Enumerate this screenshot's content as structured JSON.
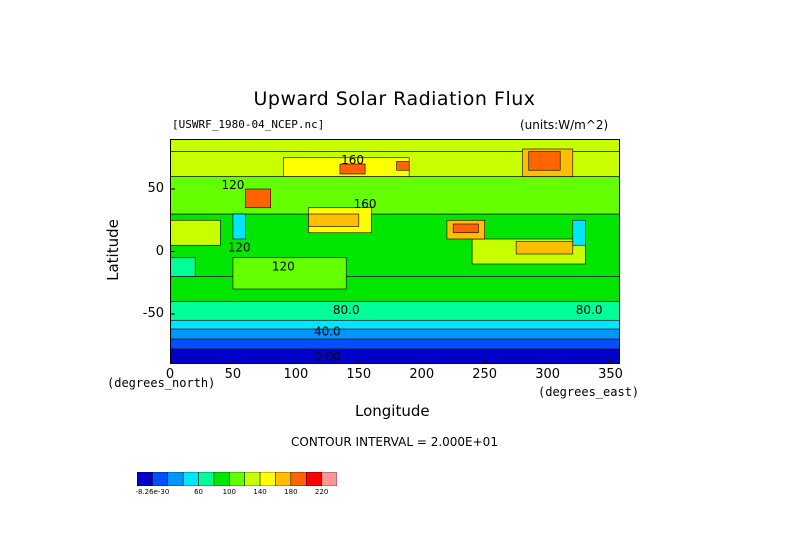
{
  "chart_data": {
    "type": "heatmap",
    "title": "Upward Solar Radiation Flux",
    "subtitle_left": "[USWRF_1980-04_NCEP.nc]",
    "subtitle_right": "(units:W/m^2)",
    "xlabel": "Longitude",
    "ylabel": "Latitude",
    "x_unit_label": "(degrees_east)",
    "y_unit_label": "(degrees_north)",
    "xlim": [
      0,
      357.5
    ],
    "ylim": [
      -90,
      90
    ],
    "x_ticks": [
      0,
      50,
      100,
      150,
      200,
      250,
      300,
      350
    ],
    "y_ticks": [
      -50,
      0,
      50
    ],
    "contour_interval_text": "CONTOUR INTERVAL = 2.000E+01",
    "contour_labels": [
      {
        "text": "160",
        "lon": 145,
        "lat": 70
      },
      {
        "text": "120",
        "lon": 50,
        "lat": 50
      },
      {
        "text": "160",
        "lon": 155,
        "lat": 35
      },
      {
        "text": "120",
        "lon": 55,
        "lat": 0
      },
      {
        "text": "120",
        "lon": 90,
        "lat": -15
      },
      {
        "text": "80.0",
        "lon": 140,
        "lat": -50
      },
      {
        "text": "80.0",
        "lon": 333,
        "lat": -50
      },
      {
        "text": "40.0",
        "lon": 125,
        "lat": -67
      },
      {
        "text": "0.00",
        "lon": 125,
        "lat": -87
      }
    ],
    "colorbar": {
      "colors": [
        "#0000c8",
        "#0050ff",
        "#0096ff",
        "#00e6ff",
        "#00ff96",
        "#00e600",
        "#64ff00",
        "#c8ff00",
        "#ffff00",
        "#ffbe00",
        "#ff6400",
        "#ff0000",
        "#ff9696"
      ],
      "tick_labels": [
        "-8.26e-30",
        "60",
        "100",
        "140",
        "180",
        "220"
      ]
    },
    "regions": [
      {
        "lat": [
          -90,
          -78
        ],
        "lon": [
          0,
          360
        ],
        "value": 10
      },
      {
        "lat": [
          -78,
          -70
        ],
        "lon": [
          0,
          360
        ],
        "value": 30
      },
      {
        "lat": [
          -70,
          -62
        ],
        "lon": [
          0,
          360
        ],
        "value": 50
      },
      {
        "lat": [
          -62,
          -55
        ],
        "lon": [
          0,
          360
        ],
        "value": 70
      },
      {
        "lat": [
          -55,
          -40
        ],
        "lon": [
          0,
          360
        ],
        "value": 90
      },
      {
        "lat": [
          -40,
          -20
        ],
        "lon": [
          0,
          360
        ],
        "value": 110
      },
      {
        "lat": [
          -20,
          30
        ],
        "lon": [
          0,
          360
        ],
        "value": 110
      },
      {
        "lat": [
          30,
          60
        ],
        "lon": [
          0,
          360
        ],
        "value": 120
      },
      {
        "lat": [
          60,
          80
        ],
        "lon": [
          0,
          360
        ],
        "value": 150
      },
      {
        "lat": [
          80,
          90
        ],
        "lon": [
          0,
          360
        ],
        "value": 150
      },
      {
        "lat": [
          5,
          25
        ],
        "lon": [
          0,
          40
        ],
        "value": 150
      },
      {
        "lat": [
          -10,
          10
        ],
        "lon": [
          240,
          330
        ],
        "value": 150
      },
      {
        "lat": [
          -30,
          -5
        ],
        "lon": [
          50,
          140
        ],
        "value": 130
      },
      {
        "lat": [
          15,
          35
        ],
        "lon": [
          110,
          160
        ],
        "value": 170
      },
      {
        "lat": [
          20,
          30
        ],
        "lon": [
          110,
          150
        ],
        "value": 190
      },
      {
        "lat": [
          10,
          25
        ],
        "lon": [
          220,
          250
        ],
        "value": 190
      },
      {
        "lat": [
          15,
          22
        ],
        "lon": [
          225,
          245
        ],
        "value": 210
      },
      {
        "lat": [
          -2,
          8
        ],
        "lon": [
          275,
          320
        ],
        "value": 190
      },
      {
        "lat": [
          60,
          82
        ],
        "lon": [
          280,
          320
        ],
        "value": 190
      },
      {
        "lat": [
          65,
          80
        ],
        "lon": [
          285,
          310
        ],
        "value": 210
      },
      {
        "lat": [
          60,
          75
        ],
        "lon": [
          90,
          190
        ],
        "value": 170
      },
      {
        "lat": [
          62,
          70
        ],
        "lon": [
          135,
          155
        ],
        "value": 210
      },
      {
        "lat": [
          65,
          72
        ],
        "lon": [
          180,
          190
        ],
        "value": 210
      },
      {
        "lat": [
          35,
          50
        ],
        "lon": [
          60,
          80
        ],
        "value": 210
      },
      {
        "lat": [
          10,
          30
        ],
        "lon": [
          50,
          60
        ],
        "value": 70
      },
      {
        "lat": [
          5,
          25
        ],
        "lon": [
          320,
          330
        ],
        "value": 70
      },
      {
        "lat": [
          -20,
          -5
        ],
        "lon": [
          0,
          20
        ],
        "value": 90
      }
    ]
  }
}
